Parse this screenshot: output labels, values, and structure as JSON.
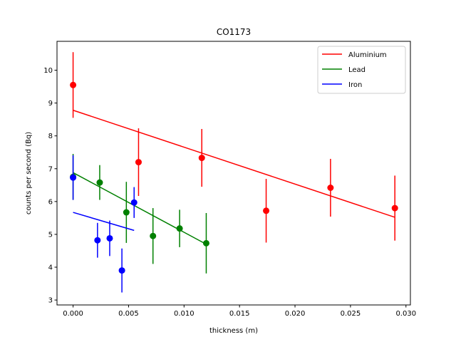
{
  "chart_data": {
    "type": "scatter",
    "title": "CO1173",
    "xlabel": "thickness (m)",
    "ylabel": "counts per second (Bq)",
    "xlim": [
      -0.00145,
      0.0304
    ],
    "ylim": [
      2.85,
      10.88
    ],
    "x_ticks": [
      0.0,
      0.005,
      0.01,
      0.015,
      0.02,
      0.025,
      0.03
    ],
    "x_tick_labels": [
      "0.000",
      "0.005",
      "0.010",
      "0.015",
      "0.020",
      "0.025",
      "0.030"
    ],
    "y_ticks": [
      3,
      4,
      5,
      6,
      7,
      8,
      9,
      10
    ],
    "y_tick_labels": [
      "3",
      "4",
      "5",
      "6",
      "7",
      "8",
      "9",
      "10"
    ],
    "grid": false,
    "legend_position": "top-right",
    "series": [
      {
        "name": "Aluminium",
        "color": "#ff0000",
        "points": [
          {
            "x": 0.0,
            "y": 9.55,
            "err": 1.0
          },
          {
            "x": 0.0059,
            "y": 7.2,
            "err": 1.03
          },
          {
            "x": 0.0116,
            "y": 7.33,
            "err": 0.88
          },
          {
            "x": 0.0174,
            "y": 5.72,
            "err": 0.97
          },
          {
            "x": 0.0232,
            "y": 6.42,
            "err": 0.88
          },
          {
            "x": 0.029,
            "y": 5.8,
            "err": 0.99
          }
        ],
        "fit": {
          "x": [
            0.0,
            0.029
          ],
          "y": [
            8.78,
            5.52
          ]
        }
      },
      {
        "name": "Lead",
        "color": "#008000",
        "points": [
          {
            "x": 0.0,
            "y": 6.75,
            "err": 0.7
          },
          {
            "x": 0.0024,
            "y": 6.58,
            "err": 0.53
          },
          {
            "x": 0.0048,
            "y": 5.67,
            "err": 0.93
          },
          {
            "x": 0.0072,
            "y": 4.95,
            "err": 0.85
          },
          {
            "x": 0.0096,
            "y": 5.18,
            "err": 0.57
          },
          {
            "x": 0.012,
            "y": 4.73,
            "err": 0.92
          }
        ],
        "fit": {
          "x": [
            0.0,
            0.012
          ],
          "y": [
            6.88,
            4.7
          ]
        }
      },
      {
        "name": "Iron",
        "color": "#0000ff",
        "points": [
          {
            "x": 0.0,
            "y": 6.73,
            "err": 0.68
          },
          {
            "x": 0.0022,
            "y": 4.82,
            "err": 0.53
          },
          {
            "x": 0.0033,
            "y": 4.88,
            "err": 0.54
          },
          {
            "x": 0.0044,
            "y": 3.9,
            "err": 0.67
          },
          {
            "x": 0.0055,
            "y": 5.97,
            "err": 0.47
          }
        ],
        "fit": {
          "x": [
            0.0,
            0.0055
          ],
          "y": [
            5.67,
            5.12
          ]
        }
      }
    ]
  }
}
